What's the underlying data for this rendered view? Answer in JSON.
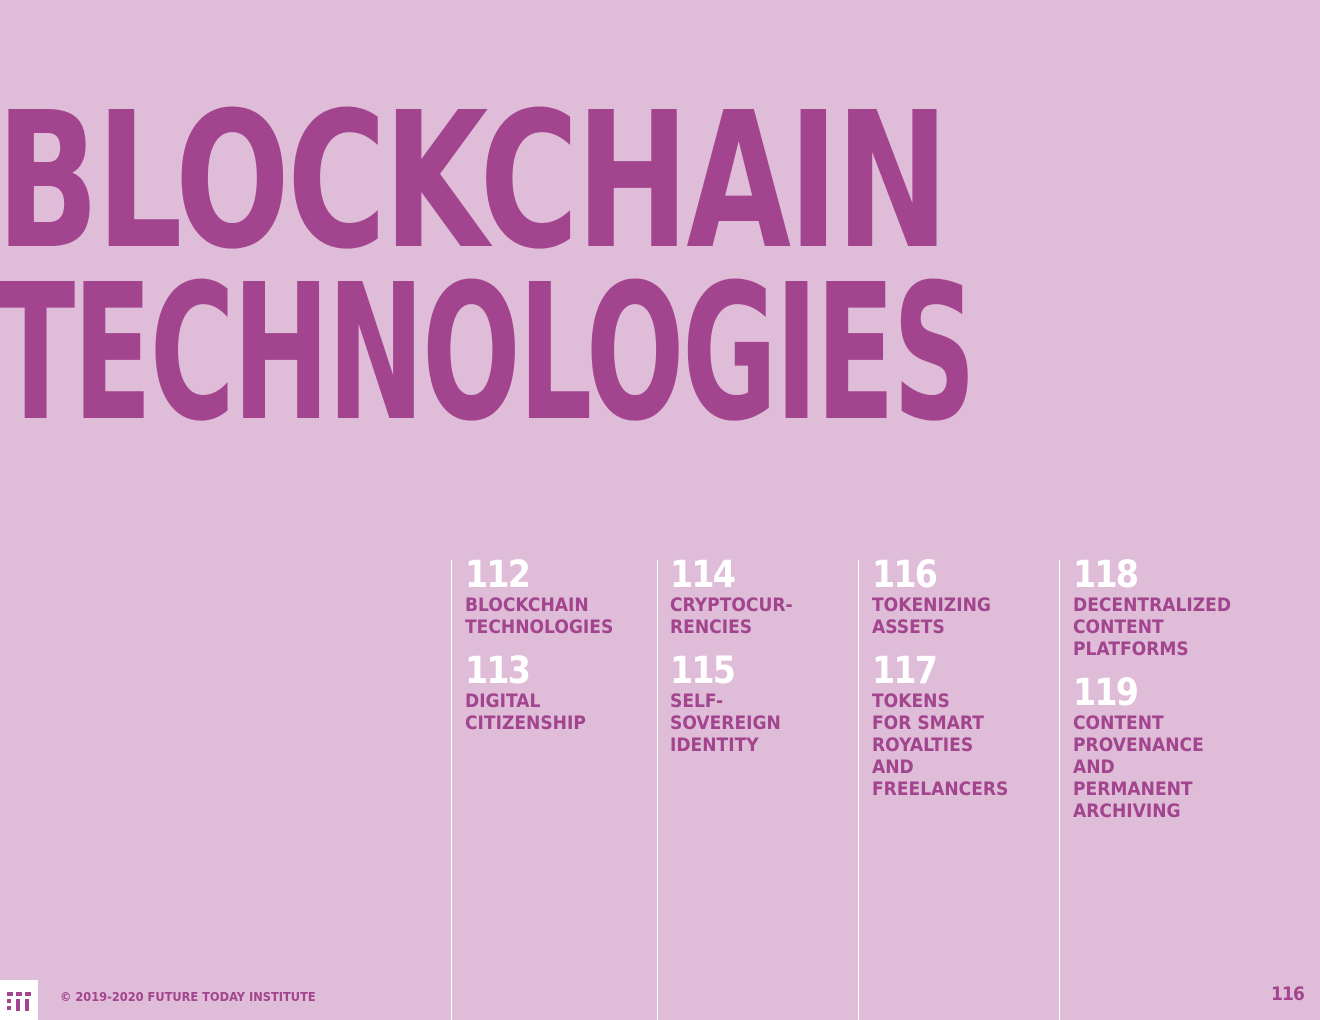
{
  "title": {
    "line1": "BLOCKCHAIN",
    "line2": "TECHNOLOGIES"
  },
  "toc": {
    "columns": [
      {
        "entries": [
          {
            "number": "112",
            "label": "BLOCKCHAIN\nTECHNOLOGIES"
          },
          {
            "number": "113",
            "label": "DIGITAL\nCITIZENSHIP"
          }
        ]
      },
      {
        "entries": [
          {
            "number": "114",
            "label": "CRYPTOCUR-\nRENCIES"
          },
          {
            "number": "115",
            "label": "SELF-\nSOVEREIGN\nIDENTITY"
          }
        ]
      },
      {
        "entries": [
          {
            "number": "116",
            "label": "TOKENIZING\nASSETS"
          },
          {
            "number": "117",
            "label": "TOKENS\nFOR SMART\nROYALTIES\nAND\nFREELANCERS"
          }
        ]
      },
      {
        "entries": [
          {
            "number": "118",
            "label": "DECENTRALIZED\nCONTENT\nPLATFORMS"
          },
          {
            "number": "119",
            "label": "CONTENT\nPROVENANCE\nAND\nPERMANENT\nARCHIVING"
          }
        ]
      }
    ]
  },
  "footer": {
    "logo_icon": "fti-logo-icon",
    "copyright": "© 2019-2020 FUTURE TODAY INSTITUTE",
    "page_number": "116"
  },
  "colors": {
    "background": "#dfbcd7",
    "accent": "#a2448e",
    "number": "#ffffff"
  }
}
